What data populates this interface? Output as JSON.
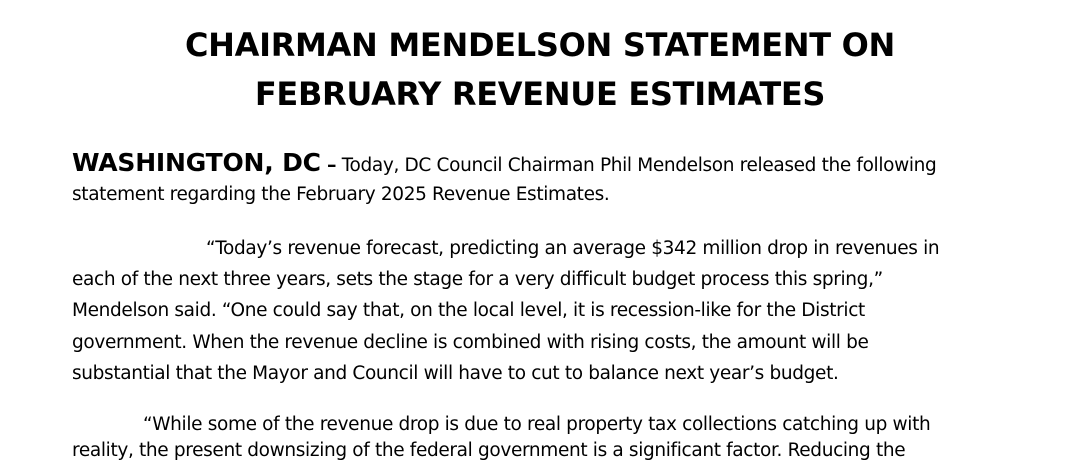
{
  "document": {
    "title_line1": "CHAIRMAN MENDELSON STATEMENT ON",
    "title_line2": "FEBRUARY REVENUE ESTIMATES",
    "dateline": "WASHINGTON, DC",
    "dash": " –",
    "intro_line1": " Today, DC Council Chairman Phil Mendelson released the following",
    "intro_line2": "statement regarding the February 2025 Revenue Estimates.",
    "quote1_lines": [
      "“Today’s revenue forecast, predicting an average $342 million drop in revenues in",
      "each of the next three years, sets the stage for a very difficult budget process this spring,”",
      "Mendelson said.  “One could say that, on the local level, it is recession-like for the District",
      "government.  When the revenue decline is combined with rising costs, the amount will be",
      "substantial that the Mayor and Council will have to cut to balance next year’s budget."
    ],
    "quote2_lines": [
      "“While some of the revenue drop is due to real property tax collections catching up with",
      "reality, the present downsizing of the federal government is a significant factor.  Reducing the"
    ]
  }
}
